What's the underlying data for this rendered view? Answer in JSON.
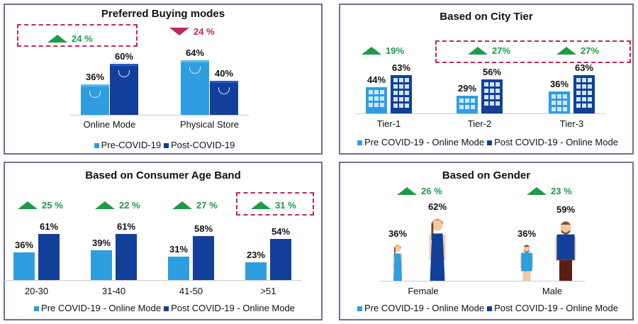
{
  "colors": {
    "pre": "#2e9ee0",
    "post": "#123f9a",
    "up": "#1e9a48",
    "down": "#c0294f"
  },
  "chart_data": [
    {
      "type": "bar",
      "title": "Preferred Buying modes",
      "categories": [
        "Online Mode",
        "Physical Store"
      ],
      "series": [
        {
          "name": "Pre-COVID-19",
          "values": [
            36,
            64
          ],
          "labels": [
            "36%",
            "64%"
          ]
        },
        {
          "name": "Post-COVID-19",
          "values": [
            60,
            40
          ],
          "labels": [
            "60%",
            "40%"
          ]
        }
      ],
      "changes": [
        {
          "direction": "up",
          "label": "24 %",
          "highlighted": true
        },
        {
          "direction": "down",
          "label": "24 %",
          "highlighted": false
        }
      ]
    },
    {
      "type": "bar",
      "title": "Based on City Tier",
      "categories": [
        "Tier-1",
        "Tier-2",
        "Tier-3"
      ],
      "series": [
        {
          "name": "Pre COVID-19 - Online Mode",
          "values": [
            44,
            29,
            36
          ],
          "labels": [
            "44%",
            "29%",
            "36%"
          ]
        },
        {
          "name": "Post COVID-19 - Online Mode",
          "values": [
            63,
            56,
            63
          ],
          "labels": [
            "63%",
            "56%",
            "63%"
          ]
        }
      ],
      "changes": [
        {
          "direction": "up",
          "label": "19%",
          "highlighted": false
        },
        {
          "direction": "up",
          "label": "27%",
          "highlighted": true
        },
        {
          "direction": "up",
          "label": "27%",
          "highlighted": true
        }
      ]
    },
    {
      "type": "bar",
      "title": "Based on Consumer Age Band",
      "categories": [
        "20-30",
        "31-40",
        "41-50",
        ">51"
      ],
      "series": [
        {
          "name": "Pre COVID-19 - Online Mode",
          "values": [
            36,
            39,
            31,
            23
          ],
          "labels": [
            "36%",
            "39%",
            "31%",
            "23%"
          ]
        },
        {
          "name": "Post COVID-19 - Online Mode",
          "values": [
            61,
            61,
            58,
            54
          ],
          "labels": [
            "61%",
            "61%",
            "58%",
            "54%"
          ]
        }
      ],
      "changes": [
        {
          "direction": "up",
          "label": "25 %",
          "highlighted": false
        },
        {
          "direction": "up",
          "label": "22 %",
          "highlighted": false
        },
        {
          "direction": "up",
          "label": "27 %",
          "highlighted": false
        },
        {
          "direction": "up",
          "label": "31 %",
          "highlighted": true
        }
      ]
    },
    {
      "type": "bar",
      "title": "Based on Gender",
      "categories": [
        "Female",
        "Male"
      ],
      "series": [
        {
          "name": "Pre COVID-19 - Online Mode",
          "values": [
            36,
            36
          ],
          "labels": [
            "36%",
            "36%"
          ]
        },
        {
          "name": "Post COVID-19 - Online Mode",
          "values": [
            62,
            59
          ],
          "labels": [
            "62%",
            "59%"
          ]
        }
      ],
      "changes": [
        {
          "direction": "up",
          "label": "26 %",
          "highlighted": false
        },
        {
          "direction": "up",
          "label": "23 %",
          "highlighted": false
        }
      ]
    }
  ]
}
